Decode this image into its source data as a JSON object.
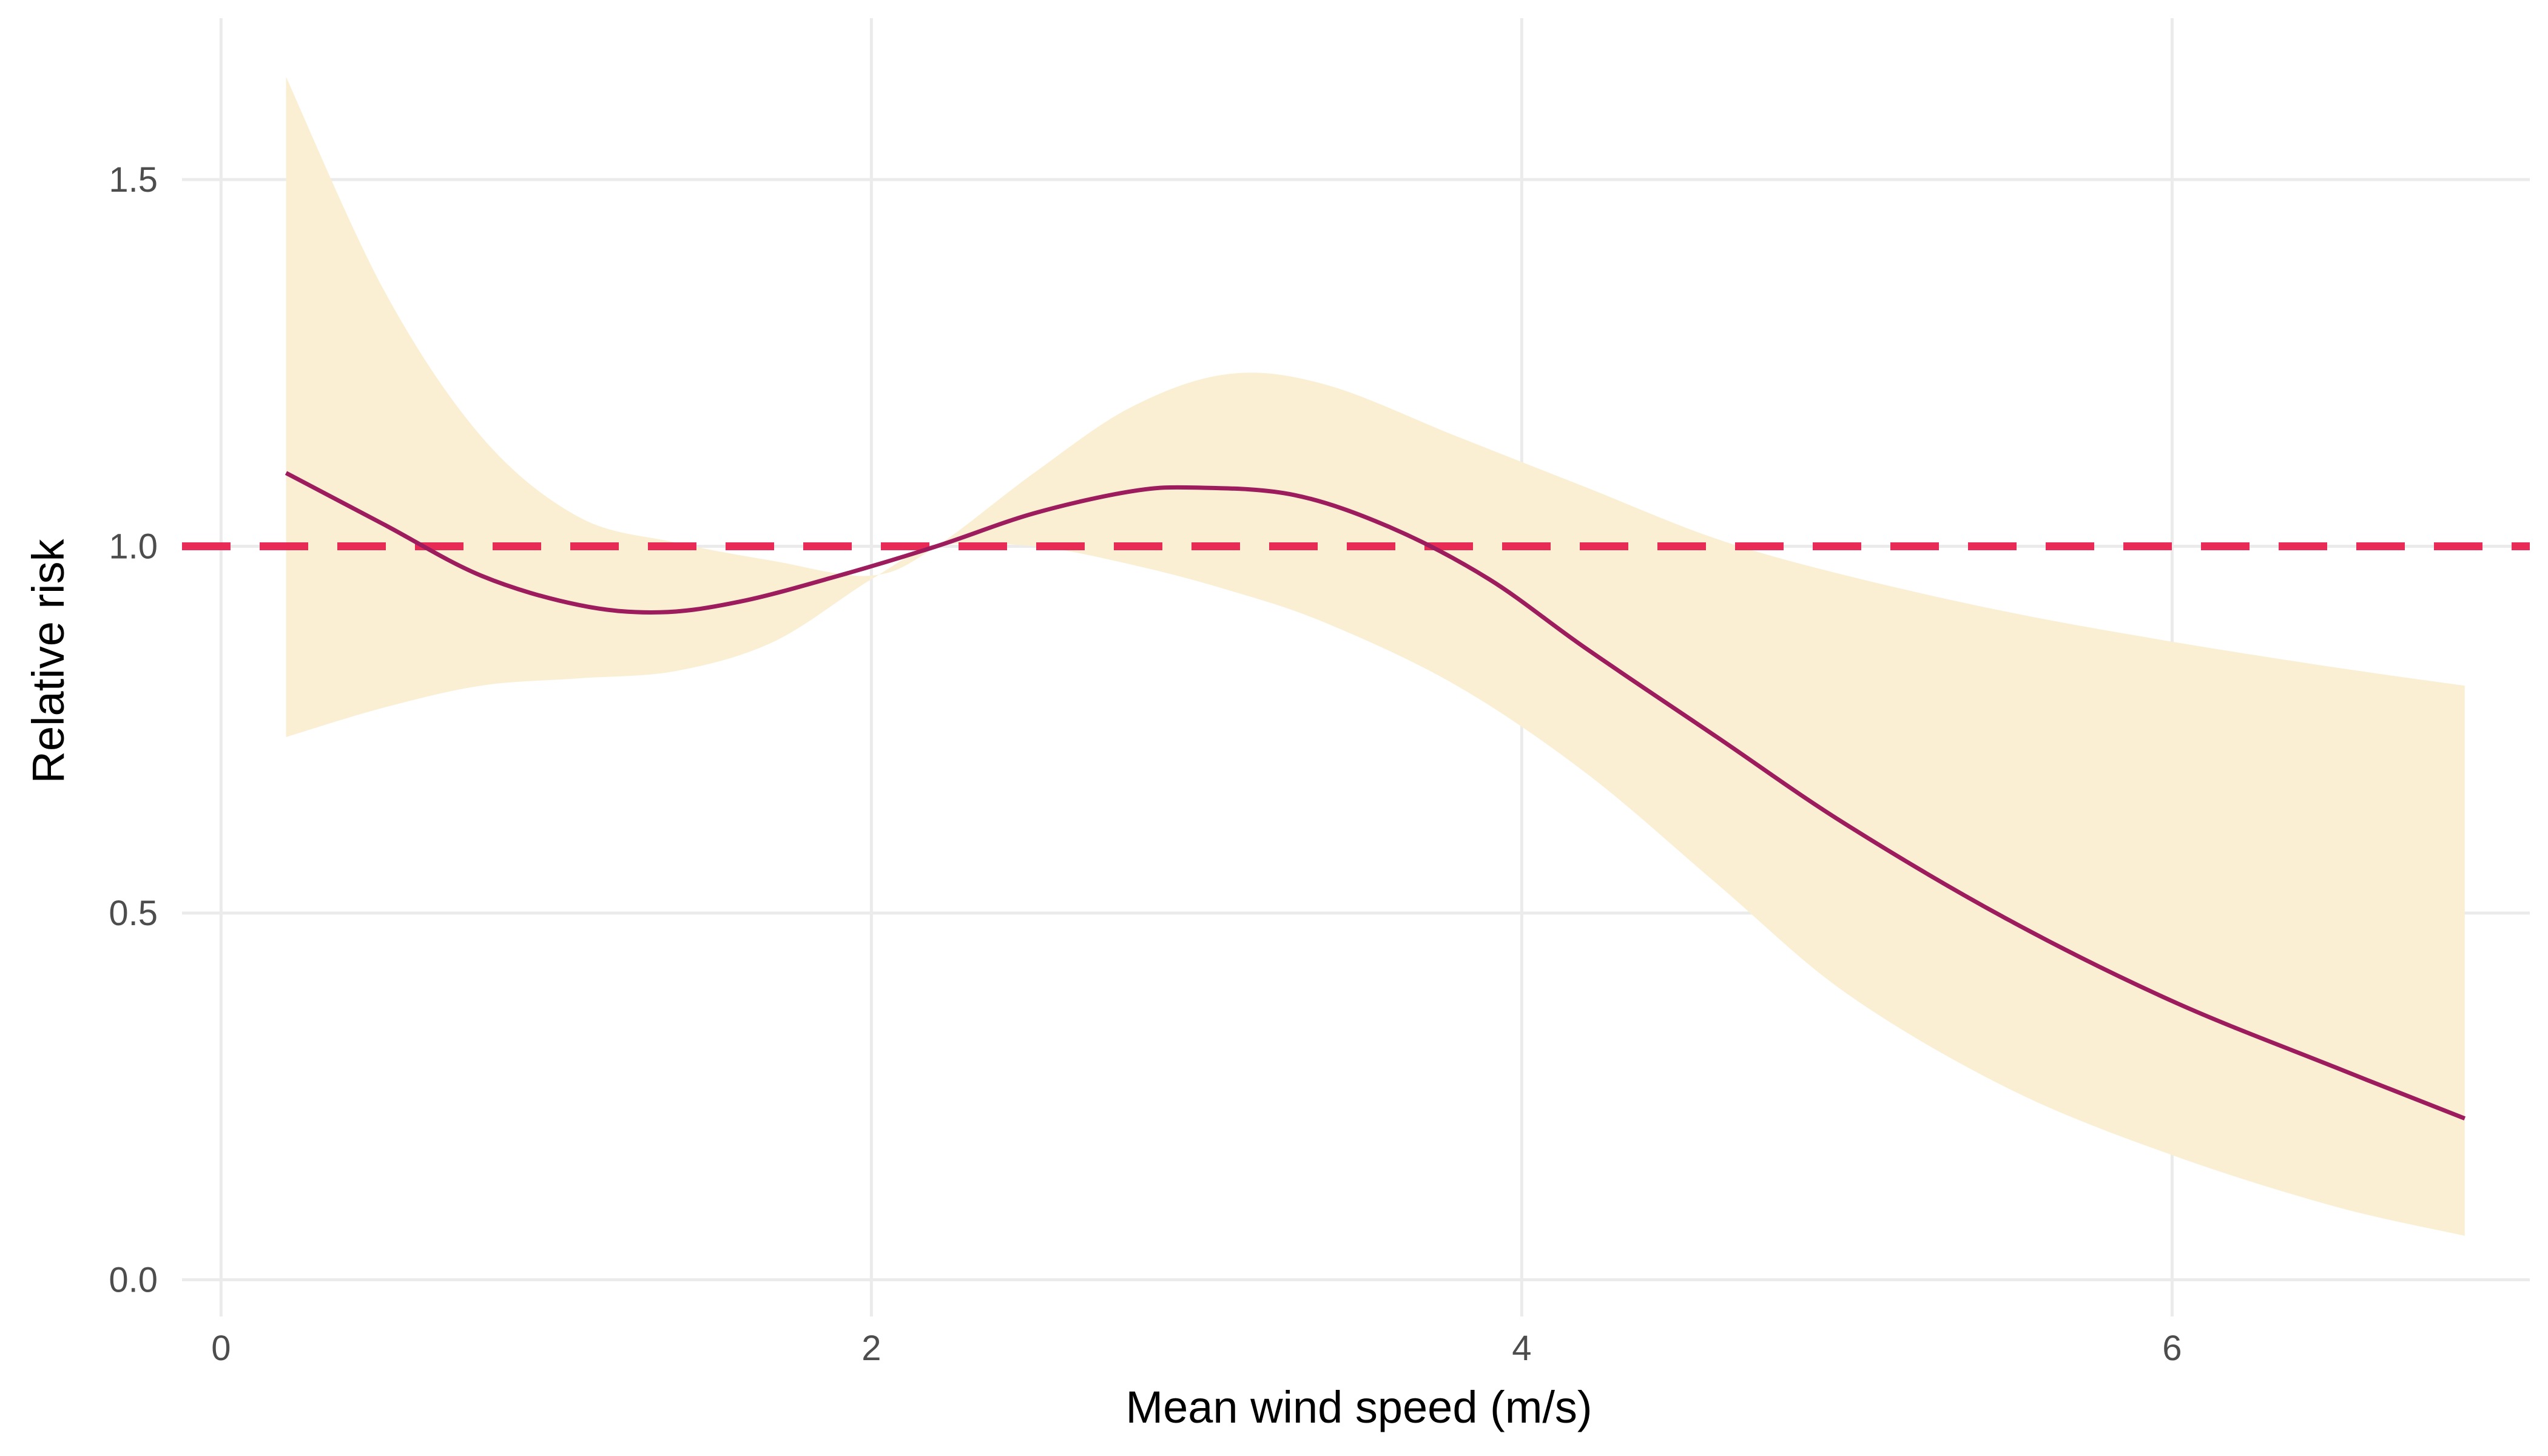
{
  "chart_data": {
    "type": "line",
    "title": "",
    "xlabel": "Mean wind speed (m/s)",
    "ylabel": "Relative risk",
    "xlim": [
      -0.12,
      7.1
    ],
    "ylim": [
      -0.05,
      1.72
    ],
    "x_ticks": [
      {
        "value": 0,
        "label": "0"
      },
      {
        "value": 2,
        "label": "2"
      },
      {
        "value": 4,
        "label": "4"
      },
      {
        "value": 6,
        "label": "6"
      }
    ],
    "y_ticks": [
      {
        "value": 0.0,
        "label": "0.0"
      },
      {
        "value": 0.5,
        "label": "0.5"
      },
      {
        "value": 1.0,
        "label": "1.0"
      },
      {
        "value": 1.5,
        "label": "1.5"
      }
    ],
    "grid": true,
    "reference_line": {
      "y": 1.0,
      "style": "dashed",
      "color": "#e8214f"
    },
    "series": [
      {
        "type": "line",
        "color": "#9c1c5e",
        "x": [
          0.2,
          0.5,
          0.8,
          1.1,
          1.35,
          1.6,
          1.9,
          2.2,
          2.5,
          2.8,
          3.0,
          3.3,
          3.6,
          3.9,
          4.2,
          4.6,
          5.0,
          5.5,
          6.0,
          6.5,
          6.9
        ],
        "y": [
          1.1,
          1.03,
          0.96,
          0.92,
          0.91,
          0.925,
          0.96,
          1.0,
          1.045,
          1.075,
          1.08,
          1.07,
          1.025,
          0.955,
          0.86,
          0.74,
          0.62,
          0.49,
          0.38,
          0.29,
          0.22
        ]
      },
      {
        "type": "area",
        "color": "#faefd3",
        "x": [
          0.2,
          0.5,
          0.8,
          1.1,
          1.4,
          1.7,
          2.0,
          2.2,
          2.5,
          2.8,
          3.1,
          3.4,
          3.8,
          4.2,
          4.6,
          5.0,
          5.5,
          6.0,
          6.5,
          6.9
        ],
        "upper": [
          1.64,
          1.35,
          1.15,
          1.04,
          1.005,
          0.98,
          0.96,
          1.0,
          1.1,
          1.19,
          1.235,
          1.22,
          1.15,
          1.08,
          1.01,
          0.96,
          0.91,
          0.87,
          0.835,
          0.81
        ],
        "lower": [
          0.74,
          0.78,
          0.81,
          0.82,
          0.83,
          0.87,
          0.955,
          1.0,
          1.0,
          0.975,
          0.94,
          0.895,
          0.81,
          0.69,
          0.54,
          0.39,
          0.26,
          0.17,
          0.1,
          0.06
        ]
      }
    ]
  }
}
